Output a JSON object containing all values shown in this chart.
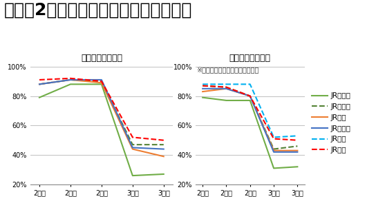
{
  "title": "現状：2月下旬から輸送量が大きく減少",
  "left_title": "新幹線　対前年比",
  "right_title": "在来線　対前年比",
  "right_note": "※主要線区の特急等のご利用実績",
  "x_labels": [
    "2月上",
    "2月中",
    "2月下",
    "3月上",
    "3月中"
  ],
  "shinkansen": {
    "JR北海道": [
      79,
      88,
      88,
      26,
      27
    ],
    "JR東日本": [
      88,
      91,
      90,
      47,
      47
    ],
    "JR東海": [
      88,
      91,
      89,
      44,
      39
    ],
    "JR西日本": [
      88,
      91,
      91,
      45,
      44
    ],
    "JR九州": [
      91,
      92,
      90,
      52,
      50
    ]
  },
  "zairai": {
    "JR北海道": [
      79,
      77,
      77,
      31,
      32
    ],
    "JR東日本": [
      87,
      86,
      80,
      44,
      46
    ],
    "JR東海": [
      83,
      85,
      80,
      43,
      43
    ],
    "JR西日本": [
      85,
      85,
      80,
      42,
      42
    ],
    "JR四国": [
      88,
      88,
      88,
      52,
      53
    ],
    "JR九州": [
      87,
      86,
      80,
      51,
      50
    ]
  },
  "colors": {
    "JR北海道": "#70ad47",
    "JR東日本": "#548235",
    "JR東海": "#ed7d31",
    "JR西日本": "#4472c4",
    "JR四国": "#00b0f0",
    "JR九州": "#ff0000"
  },
  "styles": {
    "JR北海道": {
      "linestyle": "solid",
      "linewidth": 1.5
    },
    "JR東日本": {
      "linestyle": "dashed",
      "linewidth": 1.5
    },
    "JR東海": {
      "linestyle": "solid",
      "linewidth": 1.5
    },
    "JR西日本": {
      "linestyle": "solid",
      "linewidth": 1.5
    },
    "JR四国": {
      "linestyle": "dashed",
      "linewidth": 1.5
    },
    "JR九州": {
      "linestyle": "dashed",
      "linewidth": 1.5
    }
  },
  "ylim": [
    20,
    102
  ],
  "yticks": [
    20,
    40,
    60,
    80,
    100
  ],
  "ytick_labels": [
    "20%",
    "40%",
    "60%",
    "80%",
    "100%"
  ],
  "bg_color": "#ffffff",
  "title_fontsize": 18,
  "subtitle_fontsize": 9,
  "note_fontsize": 7,
  "tick_fontsize": 7,
  "legend_fontsize": 7.5
}
